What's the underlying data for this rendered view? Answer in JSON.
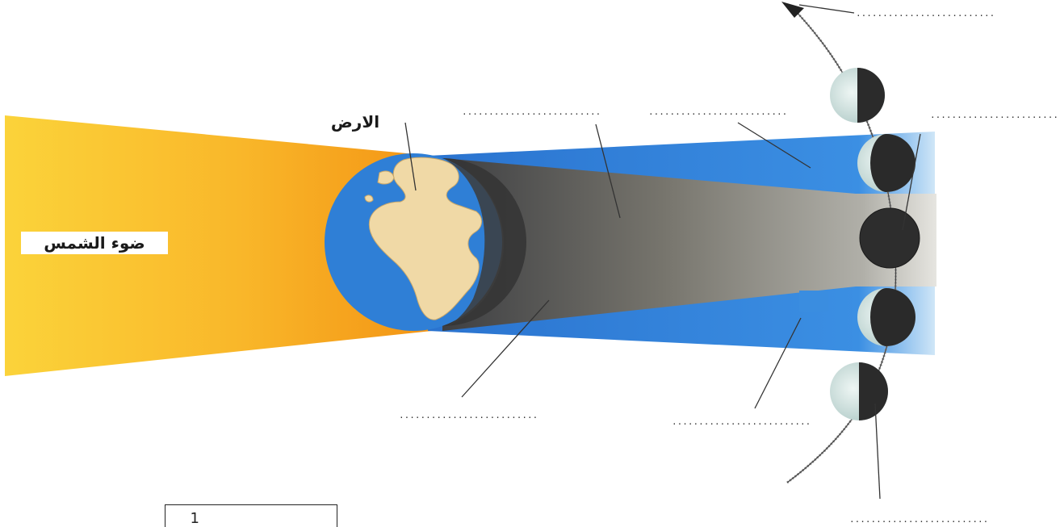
{
  "diagram": {
    "labels": {
      "sunlight": "ضوء الشمس",
      "earth": "الارض"
    },
    "blanks": [
      "..........................",
      "..........................",
      "..........................",
      "..........................",
      "..........................",
      "..........................",
      "..........................",
      ".........................."
    ],
    "box_number": "1",
    "colors": {
      "sunlight": "#f7a21b",
      "penumbra": "#2f7fd6",
      "umbra": "#6f6e69",
      "ocean": "#2f7fd6",
      "land": "#f0d9a6",
      "moon_dark": "#2a2a2a",
      "moon_lit": "#cfe0e0"
    },
    "icons": [
      "earth-globe",
      "moon",
      "orbit-arrow"
    ]
  }
}
